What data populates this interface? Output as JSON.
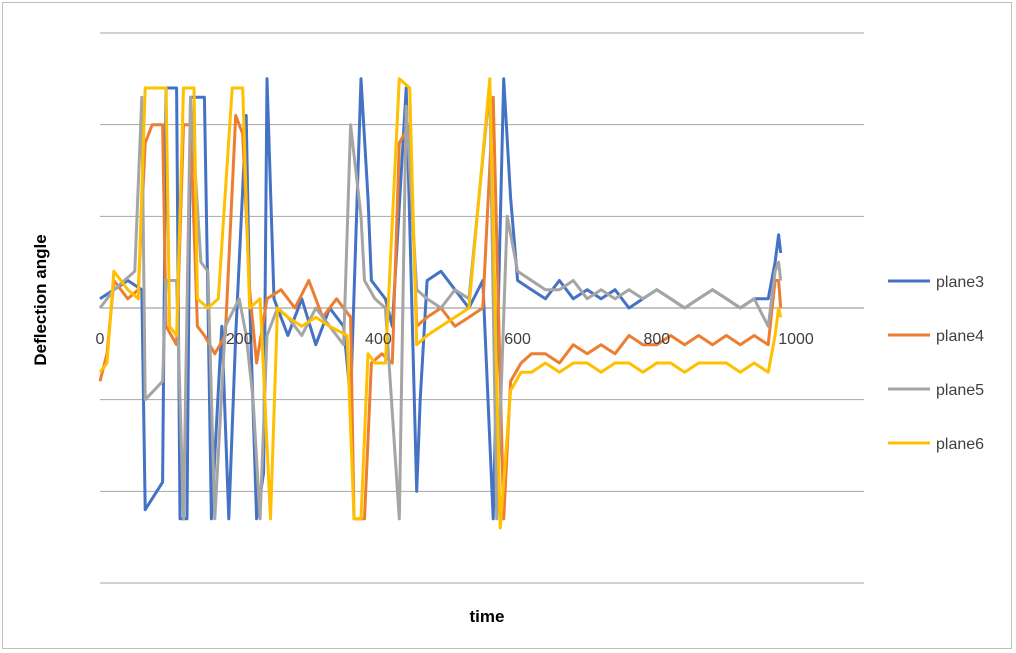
{
  "chart_data": {
    "type": "line",
    "title": "",
    "xlabel": "time",
    "ylabel": "Deflection angle",
    "xlim": [
      0,
      1000
    ],
    "ylim": [
      -3,
      3
    ],
    "x_tick_labels": [
      "0",
      "200",
      "400",
      "600",
      "800",
      "1000"
    ],
    "y_tick_labels": [],
    "grid": "horizontal",
    "legend_position": "right",
    "series": [
      {
        "name": "plane3",
        "color": "#4472C4",
        "points": [
          [
            0,
            0.1
          ],
          [
            20,
            0.2
          ],
          [
            40,
            0.3
          ],
          [
            60,
            0.2
          ],
          [
            65,
            -2.2
          ],
          [
            90,
            -1.9
          ],
          [
            95,
            2.4
          ],
          [
            110,
            2.4
          ],
          [
            115,
            -2.3
          ],
          [
            125,
            -2.3
          ],
          [
            130,
            2.3
          ],
          [
            150,
            2.3
          ],
          [
            155,
            0.1
          ],
          [
            160,
            -2.3
          ],
          [
            175,
            -0.2
          ],
          [
            185,
            -2.3
          ],
          [
            195,
            -0.3
          ],
          [
            210,
            2.1
          ],
          [
            215,
            0.1
          ],
          [
            225,
            -2.3
          ],
          [
            235,
            -1.8
          ],
          [
            240,
            2.5
          ],
          [
            250,
            0.1
          ],
          [
            270,
            -0.3
          ],
          [
            290,
            0.1
          ],
          [
            310,
            -0.4
          ],
          [
            330,
            0.0
          ],
          [
            350,
            -0.2
          ],
          [
            360,
            -1.0
          ],
          [
            375,
            2.5
          ],
          [
            385,
            1.2
          ],
          [
            390,
            0.3
          ],
          [
            410,
            0.1
          ],
          [
            420,
            -0.2
          ],
          [
            440,
            2.4
          ],
          [
            455,
            -2.0
          ],
          [
            460,
            -1.0
          ],
          [
            470,
            0.3
          ],
          [
            490,
            0.4
          ],
          [
            510,
            0.2
          ],
          [
            530,
            0.0
          ],
          [
            550,
            0.3
          ],
          [
            565,
            -2.3
          ],
          [
            580,
            2.5
          ],
          [
            590,
            1.2
          ],
          [
            600,
            0.3
          ],
          [
            620,
            0.2
          ],
          [
            640,
            0.1
          ],
          [
            660,
            0.3
          ],
          [
            680,
            0.1
          ],
          [
            700,
            0.2
          ],
          [
            720,
            0.1
          ],
          [
            740,
            0.2
          ],
          [
            760,
            0.0
          ],
          [
            780,
            0.1
          ],
          [
            800,
            0.2
          ],
          [
            820,
            0.1
          ],
          [
            840,
            0.0
          ],
          [
            860,
            0.1
          ],
          [
            880,
            0.2
          ],
          [
            900,
            0.1
          ],
          [
            920,
            0.0
          ],
          [
            940,
            0.1
          ],
          [
            960,
            0.1
          ],
          [
            970,
            0.5
          ],
          [
            975,
            0.8
          ],
          [
            978,
            0.6
          ]
        ]
      },
      {
        "name": "plane4",
        "color": "#ED7D31",
        "points": [
          [
            0,
            -0.8
          ],
          [
            10,
            -0.5
          ],
          [
            20,
            0.3
          ],
          [
            40,
            0.1
          ],
          [
            55,
            0.2
          ],
          [
            65,
            1.8
          ],
          [
            75,
            2.0
          ],
          [
            90,
            2.0
          ],
          [
            95,
            -0.2
          ],
          [
            110,
            -0.4
          ],
          [
            120,
            2.0
          ],
          [
            130,
            2.0
          ],
          [
            140,
            -0.2
          ],
          [
            150,
            -0.3
          ],
          [
            165,
            -0.5
          ],
          [
            180,
            -0.3
          ],
          [
            195,
            2.1
          ],
          [
            205,
            1.9
          ],
          [
            215,
            0.2
          ],
          [
            225,
            -0.6
          ],
          [
            240,
            0.1
          ],
          [
            260,
            0.2
          ],
          [
            280,
            0.0
          ],
          [
            300,
            0.3
          ],
          [
            320,
            -0.1
          ],
          [
            340,
            0.1
          ],
          [
            360,
            -0.1
          ],
          [
            365,
            -2.3
          ],
          [
            380,
            -2.3
          ],
          [
            390,
            -0.6
          ],
          [
            405,
            -0.5
          ],
          [
            420,
            -0.6
          ],
          [
            430,
            1.8
          ],
          [
            445,
            2.0
          ],
          [
            455,
            -0.2
          ],
          [
            470,
            -0.1
          ],
          [
            490,
            0.0
          ],
          [
            510,
            -0.2
          ],
          [
            530,
            -0.1
          ],
          [
            550,
            0.0
          ],
          [
            565,
            2.3
          ],
          [
            580,
            -2.3
          ],
          [
            590,
            -0.8
          ],
          [
            605,
            -0.6
          ],
          [
            620,
            -0.5
          ],
          [
            640,
            -0.5
          ],
          [
            660,
            -0.6
          ],
          [
            680,
            -0.4
          ],
          [
            700,
            -0.5
          ],
          [
            720,
            -0.4
          ],
          [
            740,
            -0.5
          ],
          [
            760,
            -0.3
          ],
          [
            780,
            -0.4
          ],
          [
            800,
            -0.4
          ],
          [
            820,
            -0.3
          ],
          [
            840,
            -0.4
          ],
          [
            860,
            -0.3
          ],
          [
            880,
            -0.4
          ],
          [
            900,
            -0.3
          ],
          [
            920,
            -0.4
          ],
          [
            940,
            -0.3
          ],
          [
            960,
            -0.4
          ],
          [
            970,
            0.3
          ],
          [
            975,
            0.3
          ],
          [
            978,
            0.0
          ]
        ]
      },
      {
        "name": "plane5",
        "color": "#A5A5A5",
        "points": [
          [
            0,
            0.0
          ],
          [
            20,
            0.2
          ],
          [
            35,
            0.3
          ],
          [
            50,
            0.4
          ],
          [
            60,
            2.3
          ],
          [
            65,
            -1.0
          ],
          [
            90,
            -0.8
          ],
          [
            95,
            0.3
          ],
          [
            110,
            0.3
          ],
          [
            120,
            -2.3
          ],
          [
            130,
            2.3
          ],
          [
            145,
            0.5
          ],
          [
            155,
            0.4
          ],
          [
            165,
            -2.3
          ],
          [
            180,
            -0.2
          ],
          [
            200,
            0.1
          ],
          [
            210,
            -0.3
          ],
          [
            220,
            -1.0
          ],
          [
            230,
            -2.3
          ],
          [
            240,
            -0.3
          ],
          [
            255,
            0.0
          ],
          [
            270,
            -0.1
          ],
          [
            290,
            -0.3
          ],
          [
            310,
            0.0
          ],
          [
            330,
            -0.2
          ],
          [
            350,
            -0.4
          ],
          [
            360,
            2.0
          ],
          [
            375,
            1.0
          ],
          [
            380,
            0.3
          ],
          [
            395,
            0.1
          ],
          [
            410,
            0.0
          ],
          [
            430,
            -2.3
          ],
          [
            440,
            2.2
          ],
          [
            455,
            0.2
          ],
          [
            470,
            0.1
          ],
          [
            490,
            0.0
          ],
          [
            510,
            0.2
          ],
          [
            530,
            0.1
          ],
          [
            560,
            2.4
          ],
          [
            570,
            -2.3
          ],
          [
            585,
            1.0
          ],
          [
            600,
            0.4
          ],
          [
            620,
            0.3
          ],
          [
            640,
            0.2
          ],
          [
            660,
            0.2
          ],
          [
            680,
            0.3
          ],
          [
            700,
            0.1
          ],
          [
            720,
            0.2
          ],
          [
            740,
            0.1
          ],
          [
            760,
            0.2
          ],
          [
            780,
            0.1
          ],
          [
            800,
            0.2
          ],
          [
            820,
            0.1
          ],
          [
            840,
            0.0
          ],
          [
            860,
            0.1
          ],
          [
            880,
            0.2
          ],
          [
            900,
            0.1
          ],
          [
            920,
            0.0
          ],
          [
            940,
            0.1
          ],
          [
            960,
            -0.2
          ],
          [
            970,
            0.4
          ],
          [
            975,
            0.5
          ],
          [
            978,
            0.3
          ]
        ]
      },
      {
        "name": "plane6",
        "color": "#FFC000",
        "points": [
          [
            0,
            -0.7
          ],
          [
            10,
            -0.6
          ],
          [
            20,
            0.4
          ],
          [
            30,
            0.3
          ],
          [
            40,
            0.2
          ],
          [
            55,
            0.1
          ],
          [
            65,
            2.4
          ],
          [
            95,
            2.4
          ],
          [
            100,
            -0.2
          ],
          [
            110,
            -0.3
          ],
          [
            120,
            2.4
          ],
          [
            135,
            2.4
          ],
          [
            140,
            0.1
          ],
          [
            155,
            0.0
          ],
          [
            170,
            0.1
          ],
          [
            190,
            2.4
          ],
          [
            205,
            2.4
          ],
          [
            215,
            0.0
          ],
          [
            230,
            0.1
          ],
          [
            245,
            -2.3
          ],
          [
            255,
            0.0
          ],
          [
            270,
            -0.1
          ],
          [
            290,
            -0.2
          ],
          [
            310,
            -0.1
          ],
          [
            330,
            -0.2
          ],
          [
            355,
            -0.3
          ],
          [
            365,
            -2.3
          ],
          [
            375,
            -2.3
          ],
          [
            385,
            -0.5
          ],
          [
            395,
            -0.6
          ],
          [
            410,
            -0.6
          ],
          [
            430,
            2.5
          ],
          [
            445,
            2.4
          ],
          [
            455,
            -0.4
          ],
          [
            470,
            -0.3
          ],
          [
            490,
            -0.2
          ],
          [
            510,
            -0.1
          ],
          [
            530,
            0.0
          ],
          [
            560,
            2.5
          ],
          [
            575,
            -2.4
          ],
          [
            590,
            -0.9
          ],
          [
            605,
            -0.7
          ],
          [
            620,
            -0.7
          ],
          [
            640,
            -0.6
          ],
          [
            660,
            -0.7
          ],
          [
            680,
            -0.6
          ],
          [
            700,
            -0.6
          ],
          [
            720,
            -0.7
          ],
          [
            740,
            -0.6
          ],
          [
            760,
            -0.6
          ],
          [
            780,
            -0.7
          ],
          [
            800,
            -0.6
          ],
          [
            820,
            -0.6
          ],
          [
            840,
            -0.7
          ],
          [
            860,
            -0.6
          ],
          [
            880,
            -0.6
          ],
          [
            900,
            -0.6
          ],
          [
            920,
            -0.7
          ],
          [
            940,
            -0.6
          ],
          [
            960,
            -0.7
          ],
          [
            970,
            -0.3
          ],
          [
            975,
            0.0
          ],
          [
            978,
            -0.1
          ]
        ]
      }
    ]
  }
}
